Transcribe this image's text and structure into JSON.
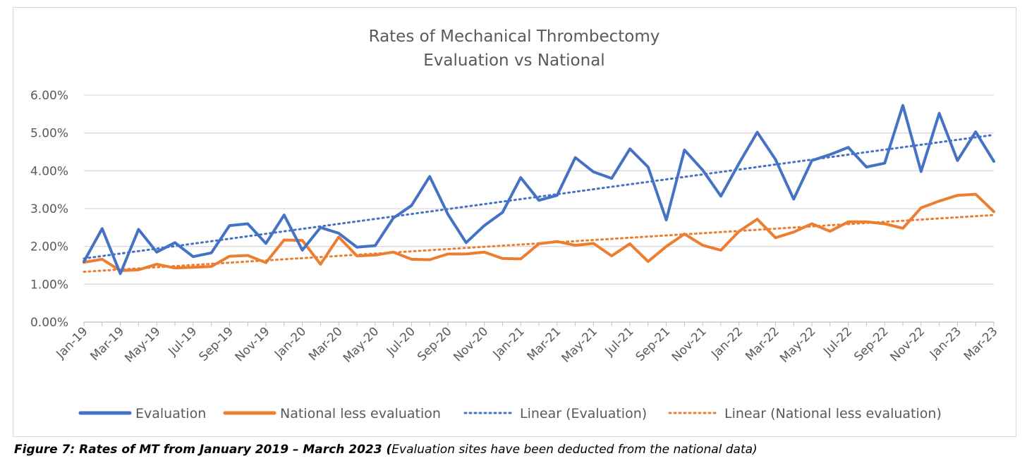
{
  "chart_data": {
    "type": "line",
    "title": [
      "Rates of Mechanical Thrombectomy",
      "Evaluation vs National"
    ],
    "ylim": [
      0,
      6
    ],
    "y_ticks": [
      "0.00%",
      "1.00%",
      "2.00%",
      "3.00%",
      "4.00%",
      "5.00%",
      "6.00%"
    ],
    "x_tick_labels": [
      "Jan-19",
      "Mar-19",
      "May-19",
      "Jul-19",
      "Sep-19",
      "Nov-19",
      "Jan-20",
      "Mar-20",
      "May-20",
      "Jul-20",
      "Sep-20",
      "Nov-20",
      "Jan-21",
      "Mar-21",
      "May-21",
      "Jul-21",
      "Sep-21",
      "Nov-21",
      "Jan-22",
      "Mar-22",
      "May-22",
      "Jul-22",
      "Sep-22",
      "Nov-22",
      "Jan-23",
      "Mar-23"
    ],
    "x_start": "2019-01",
    "x_end": "2023-03",
    "grid": true,
    "legend_position": "bottom",
    "series": [
      {
        "name": "Evaluation",
        "color": "#4472C4",
        "style": "solid",
        "values": [
          1.6,
          2.47,
          1.28,
          2.45,
          1.85,
          2.1,
          1.73,
          1.83,
          2.55,
          2.6,
          2.08,
          2.83,
          1.9,
          2.5,
          2.35,
          1.98,
          2.02,
          2.75,
          3.08,
          3.85,
          2.85,
          2.1,
          2.55,
          2.9,
          3.82,
          3.22,
          3.35,
          4.35,
          3.97,
          3.8,
          4.58,
          4.1,
          2.7,
          4.55,
          4.02,
          3.33,
          4.2,
          5.02,
          4.3,
          3.25,
          4.27,
          4.43,
          4.62,
          4.1,
          4.2,
          5.73,
          3.98,
          5.52,
          4.27,
          5.03,
          4.25
        ]
      },
      {
        "name": "National less evaluation",
        "color": "#ED7D31",
        "style": "solid",
        "values": [
          1.58,
          1.66,
          1.36,
          1.38,
          1.53,
          1.43,
          1.45,
          1.47,
          1.74,
          1.76,
          1.57,
          2.17,
          2.16,
          1.53,
          2.25,
          1.75,
          1.77,
          1.85,
          1.66,
          1.65,
          1.8,
          1.8,
          1.85,
          1.68,
          1.67,
          2.07,
          2.13,
          2.03,
          2.08,
          1.75,
          2.07,
          1.6,
          2.0,
          2.33,
          2.03,
          1.9,
          2.4,
          2.72,
          2.23,
          2.38,
          2.6,
          2.4,
          2.65,
          2.65,
          2.6,
          2.48,
          3.02,
          3.2,
          3.35,
          3.38,
          2.92
        ]
      },
      {
        "name": "Linear (Evaluation)",
        "color": "#4472C4",
        "style": "dotted",
        "values_start_end": [
          1.68,
          4.95
        ]
      },
      {
        "name": "Linear (National less evaluation)",
        "color": "#ED7D31",
        "style": "dotted",
        "values_start_end": [
          1.33,
          2.83
        ]
      }
    ]
  },
  "caption": {
    "bold_part": "Figure 7:  Rates of MT from January 2019 – March 2023",
    "paren_open": " (",
    "italic_part": "Evaluation sites have been deducted from the national data)"
  }
}
